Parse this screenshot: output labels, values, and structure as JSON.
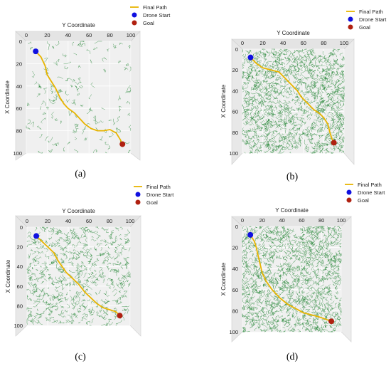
{
  "chart_data": [
    {
      "type": "scatter",
      "panel_label": "(a)",
      "xlabel": "Y Coordinate",
      "ylabel": "X Coordinate",
      "x_ticks": [
        0,
        20,
        40,
        60,
        80,
        100
      ],
      "y_ticks": [
        0,
        20,
        40,
        60,
        80,
        100
      ],
      "xlim": [
        0,
        100
      ],
      "ylim": [
        0,
        100
      ],
      "legend": [
        "Final Path",
        "Drone Start",
        "Goal"
      ],
      "colors": {
        "path": "#e8b400",
        "start": "#1010e0",
        "goal": "#b02010",
        "tree": "#2e8b3e",
        "pane": "#f0f0f0"
      },
      "tree_density": "sparse",
      "start": [
        9,
        9
      ],
      "goal": [
        92,
        92
      ],
      "path": [
        [
          9,
          9
        ],
        [
          14,
          14
        ],
        [
          18,
          22
        ],
        [
          20,
          30
        ],
        [
          24,
          36
        ],
        [
          28,
          42
        ],
        [
          32,
          50
        ],
        [
          36,
          56
        ],
        [
          40,
          60
        ],
        [
          46,
          64
        ],
        [
          52,
          70
        ],
        [
          56,
          74
        ],
        [
          62,
          78
        ],
        [
          68,
          80
        ],
        [
          74,
          80
        ],
        [
          80,
          79
        ],
        [
          86,
          82
        ],
        [
          90,
          88
        ],
        [
          92,
          92
        ]
      ]
    },
    {
      "type": "scatter",
      "panel_label": "(b)",
      "xlabel": "Y Coordinate",
      "ylabel": "X Coordinate",
      "x_ticks": [
        0,
        20,
        40,
        60,
        80,
        100
      ],
      "y_ticks": [
        0,
        20,
        40,
        60,
        80,
        100
      ],
      "xlim": [
        0,
        100
      ],
      "ylim": [
        0,
        100
      ],
      "legend": [
        "Final Path",
        "Drone Start",
        "Goal"
      ],
      "colors": {
        "path": "#e8b400",
        "start": "#1010e0",
        "goal": "#b02010",
        "tree": "#2e8b3e",
        "pane": "#f0f0f0"
      },
      "tree_density": "dense",
      "start": [
        8,
        8
      ],
      "goal": [
        90,
        90
      ],
      "path": [
        [
          8,
          8
        ],
        [
          14,
          14
        ],
        [
          20,
          18
        ],
        [
          28,
          20
        ],
        [
          36,
          22
        ],
        [
          42,
          28
        ],
        [
          48,
          34
        ],
        [
          54,
          40
        ],
        [
          58,
          46
        ],
        [
          64,
          52
        ],
        [
          70,
          58
        ],
        [
          76,
          62
        ],
        [
          80,
          66
        ],
        [
          84,
          72
        ],
        [
          86,
          80
        ],
        [
          88,
          86
        ],
        [
          90,
          90
        ]
      ]
    },
    {
      "type": "scatter",
      "panel_label": "(c)",
      "xlabel": "Y Coordinate",
      "ylabel": "X Coordinate",
      "x_ticks": [
        0,
        20,
        40,
        60,
        80,
        100
      ],
      "y_ticks": [
        0,
        20,
        40,
        60,
        80,
        100
      ],
      "xlim": [
        0,
        100
      ],
      "ylim": [
        0,
        100
      ],
      "legend": [
        "Final Path",
        "Drone Start",
        "Goal"
      ],
      "colors": {
        "path": "#e8b400",
        "start": "#1010e0",
        "goal": "#b02010",
        "tree": "#2e8b3e",
        "pane": "#f0f0f0"
      },
      "tree_density": "medium",
      "start": [
        9,
        9
      ],
      "goal": [
        90,
        90
      ],
      "path": [
        [
          9,
          9
        ],
        [
          14,
          14
        ],
        [
          20,
          20
        ],
        [
          26,
          26
        ],
        [
          30,
          34
        ],
        [
          34,
          40
        ],
        [
          38,
          46
        ],
        [
          44,
          52
        ],
        [
          50,
          58
        ],
        [
          56,
          66
        ],
        [
          62,
          72
        ],
        [
          68,
          78
        ],
        [
          74,
          82
        ],
        [
          80,
          84
        ],
        [
          86,
          86
        ],
        [
          90,
          90
        ]
      ]
    },
    {
      "type": "scatter",
      "panel_label": "(d)",
      "xlabel": "Y Coordinate",
      "ylabel": "X Coordinate",
      "x_ticks": [
        0,
        20,
        40,
        60,
        80,
        100
      ],
      "y_ticks": [
        0,
        20,
        40,
        60,
        80,
        100
      ],
      "xlim": [
        0,
        100
      ],
      "ylim": [
        0,
        100
      ],
      "legend": [
        "Final Path",
        "Drone Start",
        "Goal"
      ],
      "colors": {
        "path": "#e8b400",
        "start": "#1010e0",
        "goal": "#b02010",
        "tree": "#2e8b3e",
        "pane": "#f0f0f0"
      },
      "tree_density": "dense",
      "start": [
        8,
        8
      ],
      "goal": [
        90,
        90
      ],
      "path": [
        [
          8,
          8
        ],
        [
          12,
          14
        ],
        [
          14,
          20
        ],
        [
          16,
          28
        ],
        [
          18,
          36
        ],
        [
          20,
          44
        ],
        [
          24,
          52
        ],
        [
          30,
          60
        ],
        [
          38,
          68
        ],
        [
          46,
          74
        ],
        [
          54,
          78
        ],
        [
          62,
          82
        ],
        [
          70,
          84
        ],
        [
          78,
          86
        ],
        [
          84,
          88
        ],
        [
          90,
          90
        ]
      ]
    }
  ]
}
